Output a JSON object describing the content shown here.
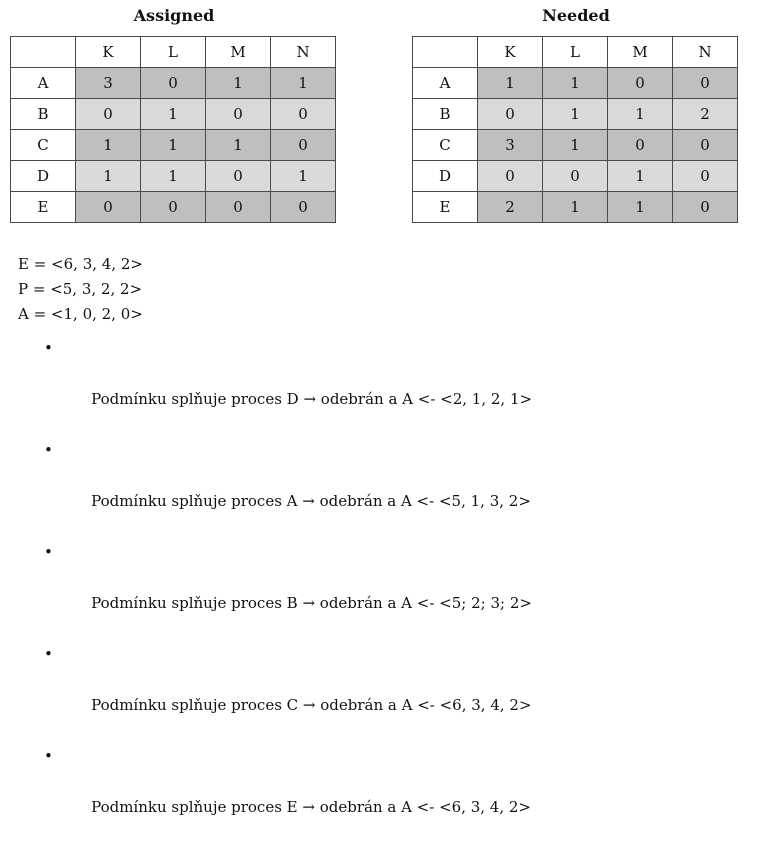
{
  "assigned": {
    "title": "Assigned",
    "columns": [
      "K",
      "L",
      "M",
      "N"
    ],
    "rows": [
      {
        "label": "A",
        "values": [
          "3",
          "0",
          "1",
          "1"
        ]
      },
      {
        "label": "B",
        "values": [
          "0",
          "1",
          "0",
          "0"
        ]
      },
      {
        "label": "C",
        "values": [
          "1",
          "1",
          "1",
          "0"
        ]
      },
      {
        "label": "D",
        "values": [
          "1",
          "1",
          "0",
          "1"
        ]
      },
      {
        "label": "E",
        "values": [
          "0",
          "0",
          "0",
          "0"
        ]
      }
    ]
  },
  "needed": {
    "title": "Needed",
    "columns": [
      "K",
      "L",
      "M",
      "N"
    ],
    "rows": [
      {
        "label": "A",
        "values": [
          "1",
          "1",
          "0",
          "0"
        ]
      },
      {
        "label": "B",
        "values": [
          "0",
          "1",
          "1",
          "2"
        ]
      },
      {
        "label": "C",
        "values": [
          "3",
          "1",
          "0",
          "0"
        ]
      },
      {
        "label": "D",
        "values": [
          "0",
          "0",
          "1",
          "0"
        ]
      },
      {
        "label": "E",
        "values": [
          "2",
          "1",
          "1",
          "0"
        ]
      }
    ]
  },
  "vectors": [
    "E = <6, 3, 4, 2>",
    "P = <5, 3, 2, 2>",
    "A = <1, 0, 2, 0>"
  ],
  "bullet_symbol": "•",
  "steps": [
    "Podmínku splňuje proces D → odebrán a A <- <2, 1, 2, 1>",
    "Podmínku splňuje proces A → odebrán a A <- <5, 1, 3, 2>",
    "Podmínku splňuje proces B → odebrán a A <- <5; 2; 3; 2>",
    "Podmínku splňuje proces C → odebrán a A <- <6, 3, 4, 2>",
    "Podmínku splňuje proces E → odebrán a A <- <6, 3, 4, 2>"
  ],
  "colors": {
    "row_dark": "#bfbfbf",
    "row_light": "#d9d9d9",
    "border": "#4a4a4a"
  }
}
